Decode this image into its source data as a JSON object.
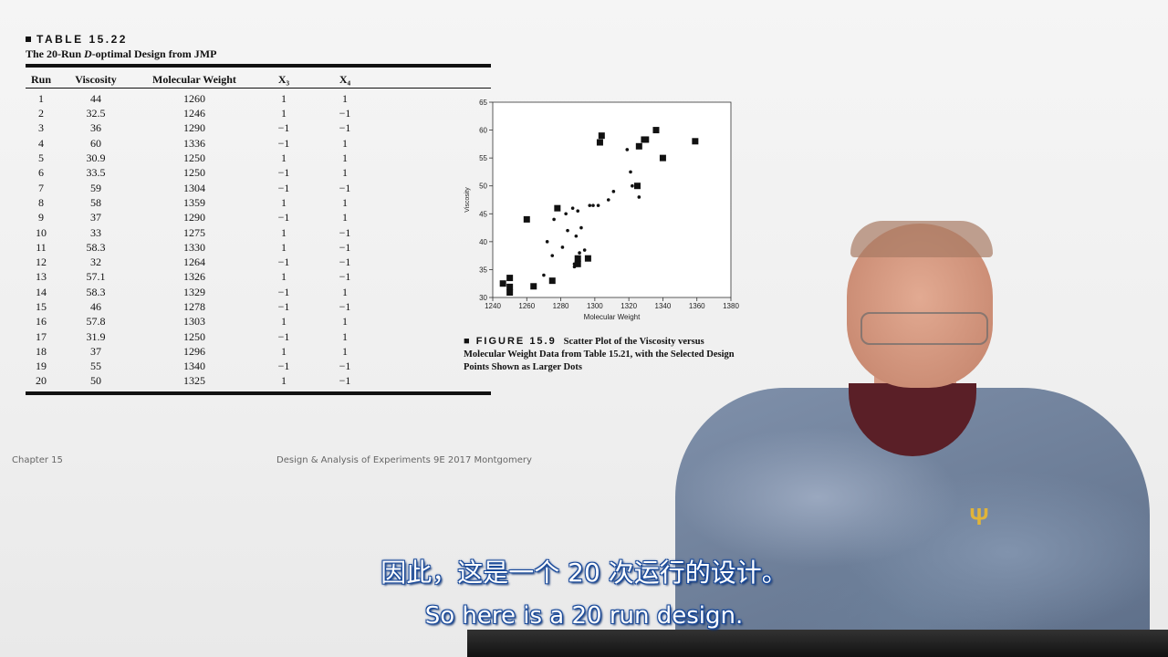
{
  "table": {
    "label": "TABLE 15.22",
    "caption_prefix": "The 20-Run ",
    "caption_italic": "D",
    "caption_suffix": "-optimal Design from JMP",
    "headers": [
      "Run",
      "Viscosity",
      "Molecular Weight",
      "X₃",
      "X₄"
    ],
    "rows": [
      [
        "1",
        "44",
        "1260",
        "1",
        "1"
      ],
      [
        "2",
        "32.5",
        "1246",
        "1",
        "−1"
      ],
      [
        "3",
        "36",
        "1290",
        "−1",
        "−1"
      ],
      [
        "4",
        "60",
        "1336",
        "−1",
        "1"
      ],
      [
        "5",
        "30.9",
        "1250",
        "1",
        "1"
      ],
      [
        "6",
        "33.5",
        "1250",
        "−1",
        "1"
      ],
      [
        "7",
        "59",
        "1304",
        "−1",
        "−1"
      ],
      [
        "8",
        "58",
        "1359",
        "1",
        "1"
      ],
      [
        "9",
        "37",
        "1290",
        "−1",
        "1"
      ],
      [
        "10",
        "33",
        "1275",
        "1",
        "−1"
      ],
      [
        "11",
        "58.3",
        "1330",
        "1",
        "−1"
      ],
      [
        "12",
        "32",
        "1264",
        "−1",
        "−1"
      ],
      [
        "13",
        "57.1",
        "1326",
        "1",
        "−1"
      ],
      [
        "14",
        "58.3",
        "1329",
        "−1",
        "1"
      ],
      [
        "15",
        "46",
        "1278",
        "−1",
        "−1"
      ],
      [
        "16",
        "57.8",
        "1303",
        "1",
        "1"
      ],
      [
        "17",
        "31.9",
        "1250",
        "−1",
        "1"
      ],
      [
        "18",
        "37",
        "1296",
        "1",
        "1"
      ],
      [
        "19",
        "55",
        "1340",
        "−1",
        "−1"
      ],
      [
        "20",
        "50",
        "1325",
        "1",
        "−1"
      ]
    ]
  },
  "chart_data": {
    "type": "scatter",
    "title": "",
    "xlabel": "Molecular Weight",
    "ylabel": "Viscosity",
    "xlim": [
      1240,
      1380
    ],
    "ylim": [
      30,
      65
    ],
    "xticks": [
      1240,
      1260,
      1280,
      1300,
      1320,
      1340,
      1360,
      1380
    ],
    "yticks": [
      30,
      35,
      40,
      45,
      50,
      55,
      60,
      65
    ],
    "grid": false,
    "series": [
      {
        "marker": "square-large",
        "x": [
          1260,
          1246,
          1290,
          1336,
          1250,
          1250,
          1304,
          1359,
          1290,
          1275,
          1330,
          1264,
          1326,
          1329,
          1278,
          1303,
          1250,
          1296,
          1340,
          1325
        ],
        "y": [
          44,
          32.5,
          36,
          60,
          30.9,
          33.5,
          59,
          58,
          37,
          33,
          58.3,
          32,
          57.1,
          58.3,
          46,
          57.8,
          31.9,
          37,
          55,
          50
        ]
      },
      {
        "marker": "dot-small",
        "x": [
          1270,
          1272,
          1275,
          1276,
          1281,
          1284,
          1287,
          1288,
          1289,
          1290,
          1291,
          1292,
          1294,
          1297,
          1299,
          1302,
          1308,
          1311,
          1319,
          1321,
          1322,
          1326,
          1288,
          1283
        ],
        "y": [
          34,
          40,
          37.5,
          44,
          39,
          42,
          46,
          36,
          41,
          45.5,
          38,
          42.5,
          38.5,
          46.5,
          46.5,
          46.5,
          47.5,
          49,
          56.5,
          52.5,
          50,
          48,
          35.5,
          45
        ]
      }
    ]
  },
  "figure": {
    "label": "FIGURE 15.9",
    "caption": "Scatter Plot of the Viscosity versus Molecular Weight Data from Table 15.21, with the Selected Design Points Shown as Larger Dots"
  },
  "footer": {
    "left": "Chapter 15",
    "center": "Design & Analysis of Experiments 9E 2017 Montgomery"
  },
  "subtitles": {
    "chinese": "因此，这是一个 20 次运行的设计。",
    "english": "So here is a 20 run design."
  },
  "colors": {
    "subtitle_outline": "#1a4a9a",
    "slide_background": "#f1f1f1"
  }
}
